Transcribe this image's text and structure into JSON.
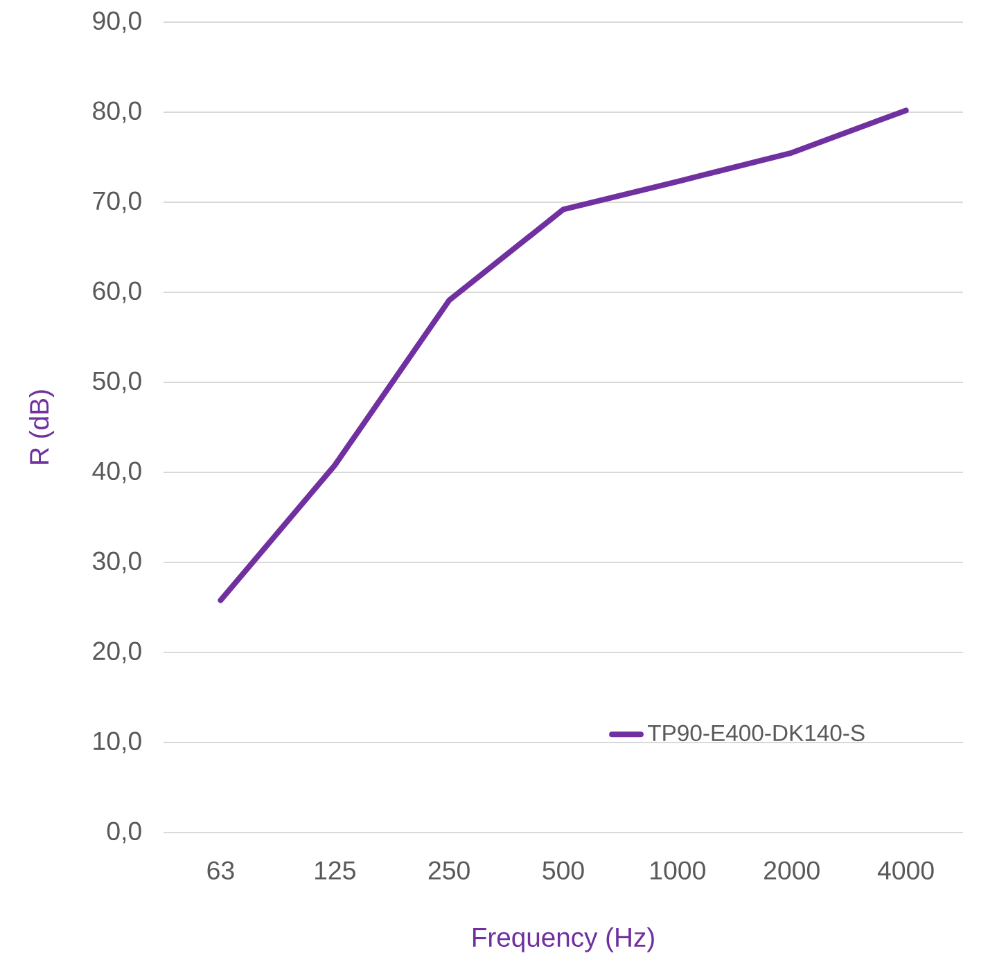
{
  "chart_data": {
    "type": "line",
    "xlabel": "Frequency (Hz)",
    "ylabel": "R (dB)",
    "categories": [
      "63",
      "125",
      "250",
      "500",
      "1000",
      "2000",
      "4000"
    ],
    "series": [
      {
        "name": "TP90-E400-DK140-S",
        "color": "#7030a0",
        "values": [
          25.8,
          40.8,
          59.1,
          69.2,
          72.3,
          75.5,
          80.2
        ]
      }
    ],
    "ylim": [
      0,
      90
    ],
    "yticks": [
      {
        "value": 0,
        "label": "0,0"
      },
      {
        "value": 10,
        "label": "10,0"
      },
      {
        "value": 20,
        "label": "20,0"
      },
      {
        "value": 30,
        "label": "30,0"
      },
      {
        "value": 40,
        "label": "40,0"
      },
      {
        "value": 50,
        "label": "50,0"
      },
      {
        "value": 60,
        "label": "60,0"
      },
      {
        "value": 70,
        "label": "70,0"
      },
      {
        "value": 80,
        "label": "80,0"
      },
      {
        "value": 90,
        "label": "90,0"
      }
    ],
    "grid": "y",
    "legend": "bottom right",
    "marker": "none",
    "line_style": "solid"
  }
}
